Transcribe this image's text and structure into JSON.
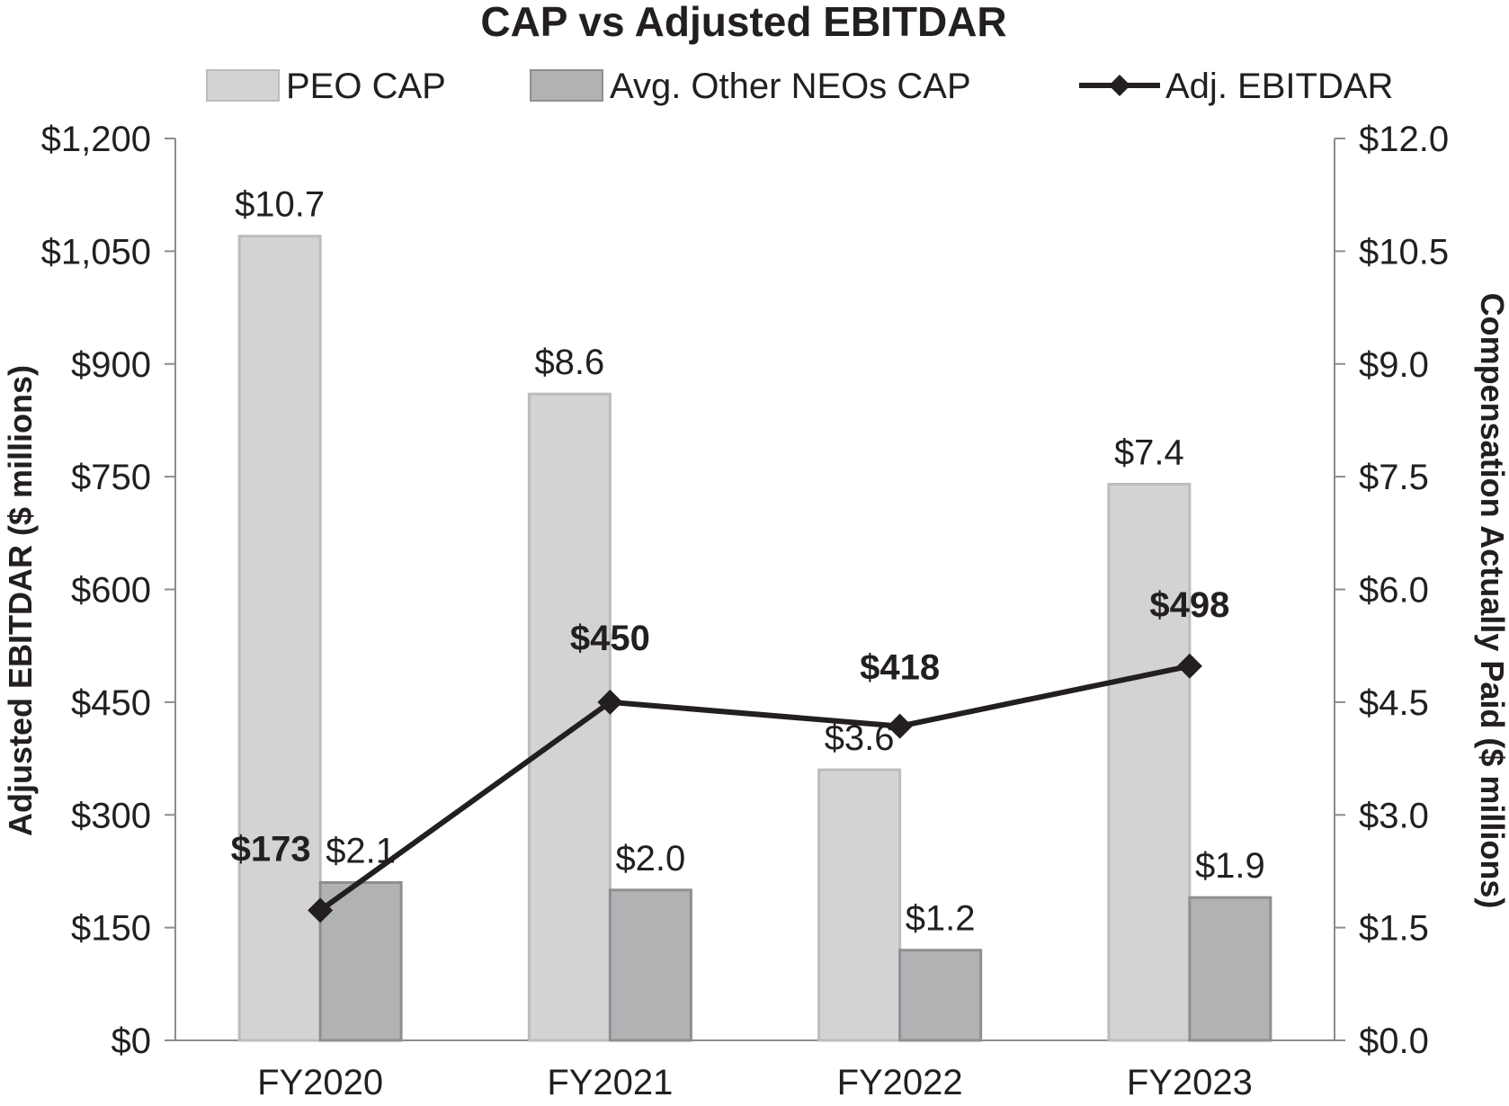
{
  "chart_data": {
    "type": "bar",
    "title": "CAP vs Adjusted EBITDAR",
    "categories": [
      "FY2020",
      "FY2021",
      "FY2022",
      "FY2023"
    ],
    "left_axis": {
      "label": "Adjusted EBITDAR ($ millions)",
      "range": [
        0,
        1200
      ],
      "ticks": [
        0,
        150,
        300,
        450,
        600,
        750,
        900,
        1050,
        1200
      ],
      "tick_labels": [
        "$0",
        "$150",
        "$300",
        "$450",
        "$600",
        "$750",
        "$900",
        "$1,050",
        "$1,200"
      ]
    },
    "right_axis": {
      "label": "Compensation Actually Paid ($ millions)",
      "range": [
        0,
        12
      ],
      "ticks": [
        0,
        1.5,
        3,
        4.5,
        6,
        7.5,
        9,
        10.5,
        12
      ],
      "tick_labels": [
        "$0.0",
        "$1.5",
        "$3.0",
        "$4.5",
        "$6.0",
        "$7.5",
        "$9.0",
        "$10.5",
        "$12.0"
      ]
    },
    "series": [
      {
        "name": "PEO CAP",
        "type": "bar",
        "axis": "right",
        "color": "#d3d3d5",
        "edge": "#bcbcbe",
        "values": [
          10.7,
          8.6,
          3.6,
          7.4
        ],
        "labels": [
          "$10.7",
          "$8.6",
          "$3.6",
          "$7.4"
        ]
      },
      {
        "name": "Avg. Other NEOs CAP",
        "type": "bar",
        "axis": "right",
        "color": "#b1b2b4",
        "edge": "#8e8f91",
        "values": [
          2.1,
          2.0,
          1.2,
          1.9
        ],
        "labels": [
          "$2.1",
          "$2.0",
          "$1.2",
          "$1.9"
        ]
      },
      {
        "name": "Adj. EBITDAR",
        "type": "line",
        "axis": "left",
        "color": "#231f20",
        "values": [
          173,
          450,
          418,
          498
        ],
        "labels": [
          "$173",
          "$450",
          "$418",
          "$498"
        ]
      }
    ],
    "legend_position": "top"
  }
}
